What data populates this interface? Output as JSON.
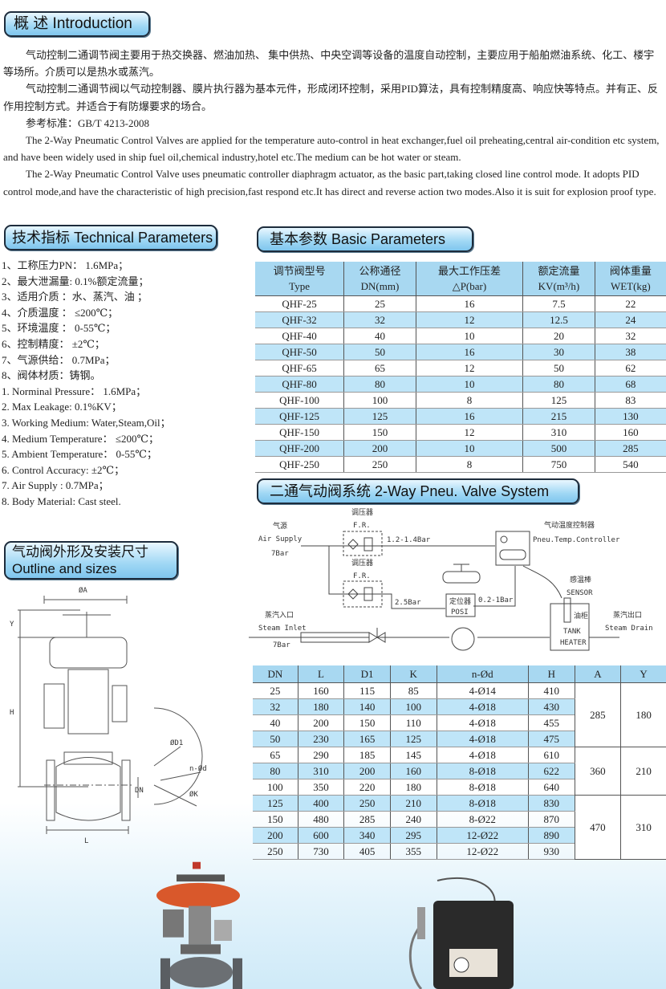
{
  "sections": {
    "intro_title": "概 述 Introduction",
    "tech_title": "技术指标 Technical Parameters",
    "basic_title": "基本参数 Basic Parameters",
    "system_title": "二通气动阀系统 2-Way Pneu. Valve System",
    "outline_title_cn": "气动阀外形及安装尺寸",
    "outline_title_en": "Outline and sizes"
  },
  "intro": [
    "气动控制二通调节阀主要用于热交换器、燃油加热、 集中供热、中央空调等设备的温度自动控制，主要应用于船舶燃油系统、化工、楼宇等场所。介质可以是热水或蒸汽。",
    "气动控制二通调节阀以气动控制器、膜片执行器为基本元件，形成闭环控制，采用PID算法，具有控制精度高、响应快等特点。并有正、反作用控制方式。并适合于有防爆要求的场合。",
    "参考标准：GB/T 4213-2008",
    "The 2-Way Pneumatic Control Valves are applied for the  temperature auto-control in heat exchanger,fuel oil preheating,central air-condition etc system, and have been widely used in ship fuel oil,chemical industry,hotel etc.The medium can be hot water or steam.",
    "The 2-Way Pneumatic Control Valve uses pneumatic controller  diaphragm actuator, as the basic part,taking closed line control mode. It adopts PID control mode,and have the characteristic of high precision,fast respond etc.It has direct and reverse action two modes.Also it is suit for explosion proof type."
  ],
  "tech_params": [
    "1、工称压力PN： 1.6MPa；",
    "2、最大泄漏量: 0.1%额定流量；",
    "3、适用介质 ：水、蒸汽、油 ；",
    "4、介质温度 ： ≤200℃；",
    "5、环境温度 ： 0-55℃；",
    "6、控制精度： ±2℃；",
    "7、气源供给： 0.7MPa；",
    "8、阀体材质：铸钢。",
    "1. Norminal Pressure： 1.6MPa；",
    "2. Max Leakage: 0.1%KV；",
    "3. Working Medium: Water,Steam,Oil；",
    "4. Medium Temperature： ≤200℃；",
    "5. Ambient Temperature： 0-55℃；",
    "6. Control Accuracy:  ±2℃；",
    "7. Air Supply : 0.7MPa；",
    "8. Body Material: Cast steel."
  ],
  "basic_table": {
    "headers": [
      [
        "调节阀型号",
        "Type"
      ],
      [
        "公称通径",
        "DN(mm)"
      ],
      [
        "最大工作压差",
        "△P(bar)"
      ],
      [
        "额定流量",
        "KV(m³/h)"
      ],
      [
        "阀体重量",
        "WET(kg)"
      ]
    ],
    "rows": [
      [
        "QHF-25",
        "25",
        "16",
        "7.5",
        "22"
      ],
      [
        "QHF-32",
        "32",
        "12",
        "12.5",
        "24"
      ],
      [
        "QHF-40",
        "40",
        "10",
        "20",
        "32"
      ],
      [
        "QHF-50",
        "50",
        "16",
        "30",
        "38"
      ],
      [
        "QHF-65",
        "65",
        "12",
        "50",
        "62"
      ],
      [
        "QHF-80",
        "80",
        "10",
        "80",
        "68"
      ],
      [
        "QHF-100",
        "100",
        "8",
        "125",
        "83"
      ],
      [
        "QHF-125",
        "125",
        "16",
        "215",
        "130"
      ],
      [
        "QHF-150",
        "150",
        "12",
        "310",
        "160"
      ],
      [
        "QHF-200",
        "200",
        "10",
        "500",
        "285"
      ],
      [
        "QHF-250",
        "250",
        "8",
        "750",
        "540"
      ]
    ]
  },
  "system_diagram": {
    "air_source_cn": "气源",
    "air_supply": "Air Supply",
    "air_pressure": "7Bar",
    "regulator_cn": "调压器",
    "regulator": "F.R.",
    "line1_pressure": "1.2-1.4Bar",
    "line2_pressure": "2.5Bar",
    "signal_pressure": "0.2-1Bar",
    "controller_cn": "气动温度控制器",
    "controller": "Pneu.Temp.Controller",
    "positioner_cn": "定位器",
    "positioner": "POSI",
    "sensor_cn": "感温棒",
    "sensor": "SENSOR",
    "tank_cn": "油柜",
    "tank1": "TANK",
    "tank2": "HEATER",
    "inlet_cn": "蒸汽入口",
    "inlet": "Steam Inlet",
    "inlet_pressure": "7Bar",
    "outlet_cn": "蒸汽出口",
    "outlet": "Steam Drain"
  },
  "outline_drawing": {
    "label_a": "ØA",
    "label_y": "Y",
    "label_h": "H",
    "label_l": "L",
    "label_dn": "DN",
    "label_d1": "ØD1",
    "label_nd": "n-Ød",
    "label_k": "ØK"
  },
  "dim_table": {
    "headers": [
      "DN",
      "L",
      "D1",
      "K",
      "n-Ød",
      "H",
      "A",
      "Y"
    ],
    "rows": [
      [
        "25",
        "160",
        "115",
        "85",
        "4-Ø14",
        "410"
      ],
      [
        "32",
        "180",
        "140",
        "100",
        "4-Ø18",
        "430"
      ],
      [
        "40",
        "200",
        "150",
        "110",
        "4-Ø18",
        "455"
      ],
      [
        "50",
        "230",
        "165",
        "125",
        "4-Ø18",
        "475"
      ],
      [
        "65",
        "290",
        "185",
        "145",
        "4-Ø18",
        "610"
      ],
      [
        "80",
        "310",
        "200",
        "160",
        "8-Ø18",
        "622"
      ],
      [
        "100",
        "350",
        "220",
        "180",
        "8-Ø18",
        "640"
      ],
      [
        "125",
        "400",
        "250",
        "210",
        "8-Ø18",
        "830"
      ],
      [
        "150",
        "480",
        "285",
        "240",
        "8-Ø22",
        "870"
      ],
      [
        "200",
        "600",
        "340",
        "295",
        "12-Ø22",
        "890"
      ],
      [
        "250",
        "730",
        "405",
        "355",
        "12-Ø22",
        "930"
      ]
    ],
    "groups": [
      {
        "rows": 4,
        "A": "285",
        "Y": "180"
      },
      {
        "rows": 3,
        "A": "360",
        "Y": "210"
      },
      {
        "rows": 4,
        "A": "470",
        "Y": "310"
      }
    ]
  },
  "colors": {
    "row_stripe": "#bfe5f8",
    "header_fill": "#a8d8f1",
    "pill_fill": "#9fd7f4"
  }
}
